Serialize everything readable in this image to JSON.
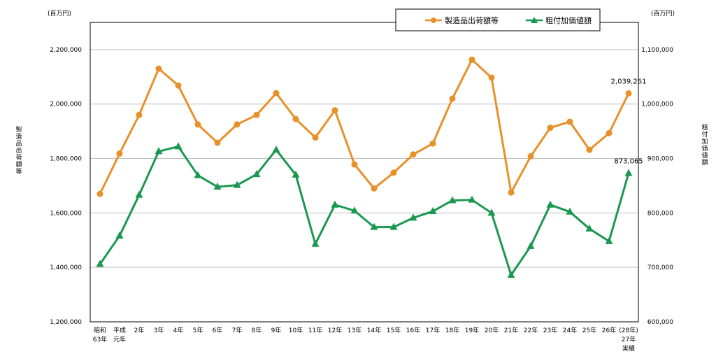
{
  "chart_data": {
    "type": "line",
    "left_axis": {
      "unit": "(百万円)",
      "label": "製造品出荷額等",
      "min": 1200000,
      "max": 2300000,
      "ticks": [
        1200000,
        1400000,
        1600000,
        1800000,
        2000000,
        2200000
      ],
      "tick_labels": [
        "1,200,000",
        "1,400,000",
        "1,600,000",
        "1,800,000",
        "2,000,000",
        "2,200,000"
      ]
    },
    "right_axis": {
      "unit": "(百万円)",
      "label": "粗付加価値額",
      "min": 600000,
      "max": 1150000,
      "ticks": [
        600000,
        700000,
        800000,
        900000,
        1000000,
        1100000
      ],
      "tick_labels": [
        "600,000",
        "700,000",
        "800,000",
        "900,000",
        "1,000,000",
        "1,100,000"
      ]
    },
    "categories": [
      [
        "昭和",
        "63年"
      ],
      [
        "平成",
        "元年"
      ],
      [
        "2年"
      ],
      [
        "3年"
      ],
      [
        "4年"
      ],
      [
        "5年"
      ],
      [
        "6年"
      ],
      [
        "7年"
      ],
      [
        "8年"
      ],
      [
        "9年"
      ],
      [
        "10年"
      ],
      [
        "11年"
      ],
      [
        "12年"
      ],
      [
        "13年"
      ],
      [
        "14年"
      ],
      [
        "15年"
      ],
      [
        "16年"
      ],
      [
        "17年"
      ],
      [
        "18年"
      ],
      [
        "19年"
      ],
      [
        "20年"
      ],
      [
        "21年"
      ],
      [
        "22年"
      ],
      [
        "23年"
      ],
      [
        "24年"
      ],
      [
        "25年"
      ],
      [
        "26年"
      ],
      [
        "(28年)",
        "27年",
        "実績"
      ]
    ],
    "series": [
      {
        "name": "製造品出荷額等",
        "axis": "left",
        "color": "#E8902A",
        "marker": "circle",
        "values": [
          1670000,
          1818000,
          1960000,
          2130000,
          2068000,
          1925000,
          1858000,
          1925000,
          1960000,
          2040000,
          1945000,
          1877000,
          1977000,
          1778000,
          1690000,
          1748000,
          1815000,
          1855000,
          2020000,
          2163000,
          2097000,
          1675000,
          1808000,
          1913000,
          1935000,
          1832000,
          1893000,
          2039261
        ],
        "data_label": "2,039,261"
      },
      {
        "name": "粗付加価値額",
        "axis": "right",
        "color": "#1A9850",
        "marker": "triangle",
        "values": [
          706000,
          758000,
          833000,
          913000,
          922000,
          869000,
          848000,
          851000,
          871000,
          916000,
          870000,
          743000,
          815000,
          804000,
          774000,
          774000,
          791000,
          803000,
          823000,
          824000,
          800000,
          686000,
          739000,
          815000,
          802000,
          771000,
          748000,
          873065
        ],
        "data_label": "873,065"
      }
    ],
    "grid": true,
    "legend": "top-right"
  }
}
